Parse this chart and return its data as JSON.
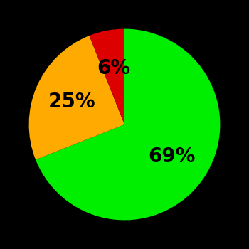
{
  "slices": [
    69,
    25,
    6
  ],
  "colors": [
    "#00ee00",
    "#ffaa00",
    "#dd0000"
  ],
  "labels": [
    "69%",
    "25%",
    "6%"
  ],
  "background_color": "#000000",
  "text_color": "#000000",
  "startangle": 90,
  "figsize": [
    3.5,
    3.5
  ],
  "dpi": 100
}
